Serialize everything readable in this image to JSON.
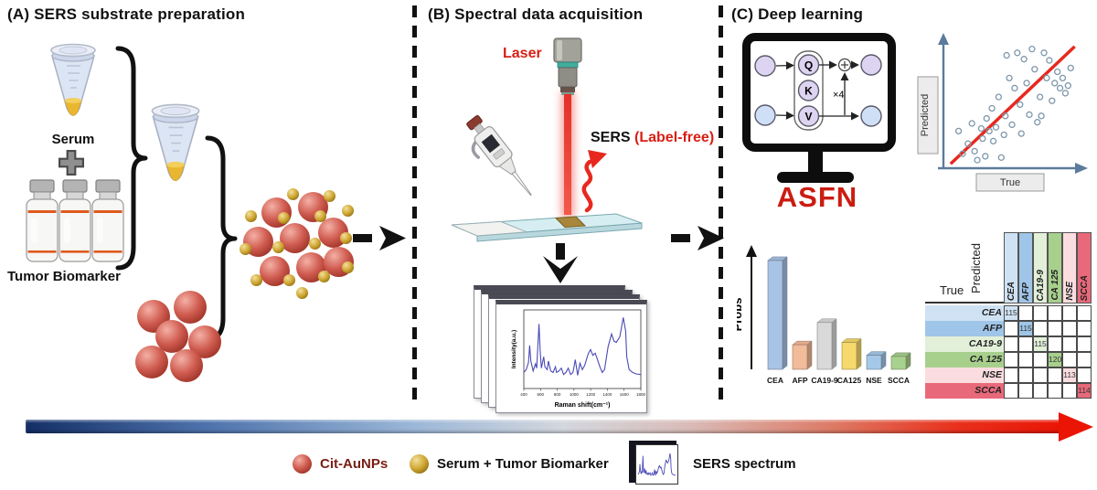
{
  "panels": {
    "a": {
      "title": "(A) SERS substrate preparation",
      "serum_label": "Serum",
      "plus_sign": "+",
      "biomarker_label": "Tumor Biomarker"
    },
    "b": {
      "title": "(B) Spectral data acquisition",
      "laser_label": "Laser",
      "sers_label": "SERS",
      "label_free": "(Label-free)"
    },
    "c": {
      "title": "(C) Deep learning",
      "model_name": "ASFN",
      "attention": {
        "q": "Q",
        "k": "K",
        "v": "V",
        "repeat": "×4"
      }
    }
  },
  "legend": {
    "items": [
      {
        "icon": "red-sphere-icon",
        "label": "Cit-AuNPs",
        "label_color": "#7a1e14"
      },
      {
        "icon": "gold-sphere-icon",
        "label": "Serum + Tumor Biomarker",
        "label_color": "#111111"
      },
      {
        "icon": "spectrum-card-icon",
        "label": "SERS spectrum",
        "label_color": "#111111"
      }
    ]
  },
  "colors": {
    "red_nanoparticle": "#c94f43",
    "gold_nanoparticle": "#c79b2e",
    "laser_red": "#e8281e",
    "asfn_red": "#cc1c12",
    "spectrum_line": "#4a4ab8",
    "gradient_arrow": [
      "#142f66",
      "#9db8d8",
      "#d3d7de",
      "#d9bcb8",
      "#ea1505"
    ]
  },
  "chart_data": [
    {
      "id": "sers_spectrum",
      "type": "line",
      "xlabel": "Raman shift(cm⁻¹)",
      "ylabel": "Intensity(a.u.)",
      "xlim": [
        400,
        1800
      ],
      "xticks": [
        400,
        600,
        800,
        1000,
        1200,
        1400,
        1600,
        1800
      ],
      "line_color": "#4a4ab8",
      "points": [
        [
          0,
          0.2
        ],
        [
          2,
          0.24
        ],
        [
          4,
          0.34
        ],
        [
          5,
          0.58
        ],
        [
          6,
          0.36
        ],
        [
          8,
          0.22
        ],
        [
          10,
          0.32
        ],
        [
          11,
          0.26
        ],
        [
          13,
          0.88
        ],
        [
          14,
          0.5
        ],
        [
          15,
          0.26
        ],
        [
          17,
          0.42
        ],
        [
          18,
          0.28
        ],
        [
          20,
          0.24
        ],
        [
          21,
          0.36
        ],
        [
          23,
          0.22
        ],
        [
          25,
          0.2
        ],
        [
          27,
          0.28
        ],
        [
          28,
          0.2
        ],
        [
          30,
          0.22
        ],
        [
          32,
          0.26
        ],
        [
          34,
          0.17
        ],
        [
          36,
          0.2
        ],
        [
          38,
          0.26
        ],
        [
          40,
          0.17
        ],
        [
          42,
          0.2
        ],
        [
          44,
          0.38
        ],
        [
          46,
          0.16
        ],
        [
          48,
          0.33
        ],
        [
          50,
          0.24
        ],
        [
          52,
          0.3
        ],
        [
          55,
          0.46
        ],
        [
          57,
          0.52
        ],
        [
          59,
          0.44
        ],
        [
          61,
          0.47
        ],
        [
          63,
          0.38
        ],
        [
          65,
          0.28
        ],
        [
          67,
          0.2
        ],
        [
          69,
          0.24
        ],
        [
          72,
          0.56
        ],
        [
          75,
          0.74
        ],
        [
          77,
          0.64
        ],
        [
          79,
          0.62
        ],
        [
          82,
          0.7
        ],
        [
          85,
          0.97
        ],
        [
          87,
          0.78
        ],
        [
          88,
          0.42
        ],
        [
          90,
          0.24
        ],
        [
          93,
          0.2
        ],
        [
          96,
          0.18
        ],
        [
          100,
          0.17
        ]
      ]
    },
    {
      "id": "probs_bar",
      "type": "bar",
      "ylabel": "Probs",
      "categories": [
        "CEA",
        "AFP",
        "CA19-9",
        "CA125",
        "NSE",
        "SCCA"
      ],
      "values": [
        0.93,
        0.21,
        0.4,
        0.23,
        0.12,
        0.11
      ],
      "colors": [
        "#a9c3e6",
        "#f2bb9a",
        "#d9d9d9",
        "#f5d96d",
        "#a5c8e8",
        "#a9d18e"
      ],
      "ylim": [
        0,
        1
      ]
    },
    {
      "id": "prediction_scatter",
      "type": "scatter",
      "xlabel": "True",
      "ylabel": "Predicted",
      "line_color": "#e8281e",
      "fit_line": [
        [
          0.04,
          0.02
        ],
        [
          0.97,
          0.95
        ]
      ],
      "points": [
        [
          0.1,
          0.28
        ],
        [
          0.13,
          0.1
        ],
        [
          0.17,
          0.18
        ],
        [
          0.2,
          0.34
        ],
        [
          0.22,
          0.12
        ],
        [
          0.24,
          0.05
        ],
        [
          0.27,
          0.3
        ],
        [
          0.28,
          0.22
        ],
        [
          0.3,
          0.08
        ],
        [
          0.31,
          0.38
        ],
        [
          0.33,
          0.28
        ],
        [
          0.35,
          0.46
        ],
        [
          0.36,
          0.2
        ],
        [
          0.38,
          0.31
        ],
        [
          0.4,
          0.55
        ],
        [
          0.42,
          0.07
        ],
        [
          0.44,
          0.25
        ],
        [
          0.45,
          0.4
        ],
        [
          0.46,
          0.88
        ],
        [
          0.48,
          0.7
        ],
        [
          0.5,
          0.33
        ],
        [
          0.52,
          0.62
        ],
        [
          0.54,
          0.9
        ],
        [
          0.56,
          0.49
        ],
        [
          0.57,
          0.26
        ],
        [
          0.59,
          0.85
        ],
        [
          0.61,
          0.66
        ],
        [
          0.63,
          0.41
        ],
        [
          0.65,
          0.93
        ],
        [
          0.67,
          0.77
        ],
        [
          0.69,
          0.35
        ],
        [
          0.71,
          0.55
        ],
        [
          0.72,
          0.4
        ],
        [
          0.74,
          0.9
        ],
        [
          0.76,
          0.7
        ],
        [
          0.78,
          0.84
        ],
        [
          0.8,
          0.52
        ],
        [
          0.82,
          0.66
        ],
        [
          0.84,
          0.75
        ],
        [
          0.86,
          0.62
        ],
        [
          0.88,
          0.7
        ],
        [
          0.9,
          0.58
        ],
        [
          0.92,
          0.64
        ],
        [
          0.94,
          0.78
        ]
      ]
    },
    {
      "id": "confusion_matrix",
      "type": "heatmap",
      "row_axis": "True",
      "col_axis": "Predicted",
      "classes": [
        "CEA",
        "AFP",
        "CA19-9",
        "CA 125",
        "NSE",
        "SCCA"
      ],
      "class_colors": [
        "#cfe2f3",
        "#9fc5e8",
        "#e2efd9",
        "#a8d08d",
        "#fbdde0",
        "#e8697a"
      ],
      "diagonal_values": [
        115,
        115,
        115,
        120,
        113,
        114
      ]
    }
  ]
}
